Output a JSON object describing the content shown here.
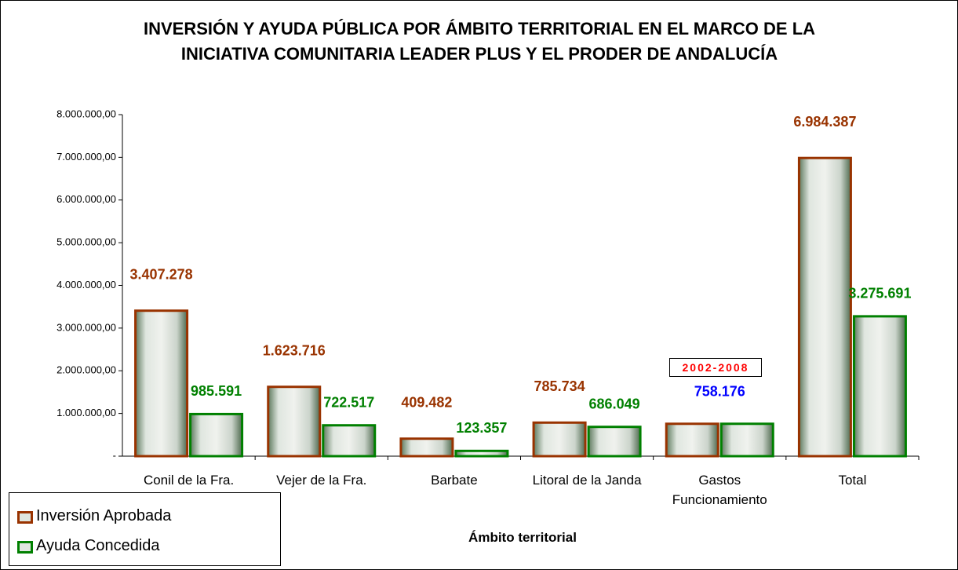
{
  "chart_data": {
    "type": "bar",
    "title": "INVERSIÓN Y AYUDA PÚBLICA POR ÁMBITO TERRITORIAL EN EL MARCO DE LA INICIATIVA COMUNITARIA LEADER PLUS Y EL PRODER DE ANDALUCÍA",
    "x_label": "Ámbito territorial",
    "annotation": "2002-2008",
    "categories": [
      "Conil de la Fra.",
      "Vejer de la Fra.",
      "Barbate",
      "Litoral de la Janda",
      "Gastos Funcionamiento",
      "Total"
    ],
    "series": [
      {
        "name": "Inversión Aprobada",
        "color": "#993300",
        "values": [
          3407278,
          1623716,
          409482,
          785734,
          758176,
          6984387
        ],
        "value_labels": [
          "3.407.278",
          "1.623.716",
          "409.482",
          "785.734",
          null,
          "6.984.387"
        ],
        "value_label_colors": [
          "#993300",
          "#993300",
          "#993300",
          "#993300",
          "#993300",
          "#993300"
        ]
      },
      {
        "name": "Ayuda Concedida",
        "color": "#008000",
        "values": [
          985591,
          722517,
          123357,
          686049,
          758176,
          3275691
        ],
        "value_labels": [
          "985.591",
          "722.517",
          "123.357",
          "686.049",
          "758.176",
          "3.275.691"
        ],
        "value_label_colors": [
          "#008000",
          "#008000",
          "#008000",
          "#008000",
          "#0000ff",
          "#008000"
        ]
      }
    ],
    "ylim": [
      0,
      8000000
    ],
    "yticks": [
      {
        "value": 0,
        "label": "-"
      },
      {
        "value": 1000000,
        "label": "1.000.000,00"
      },
      {
        "value": 2000000,
        "label": "2.000.000,00"
      },
      {
        "value": 3000000,
        "label": "3.000.000,00"
      },
      {
        "value": 4000000,
        "label": "4.000.000,00"
      },
      {
        "value": 5000000,
        "label": "5.000.000,00"
      },
      {
        "value": 6000000,
        "label": "6.000.000,00"
      },
      {
        "value": 7000000,
        "label": "7.000.000,00"
      },
      {
        "value": 8000000,
        "label": "8.000.000,00"
      }
    ],
    "grid": false,
    "legend": "bottom-left"
  }
}
